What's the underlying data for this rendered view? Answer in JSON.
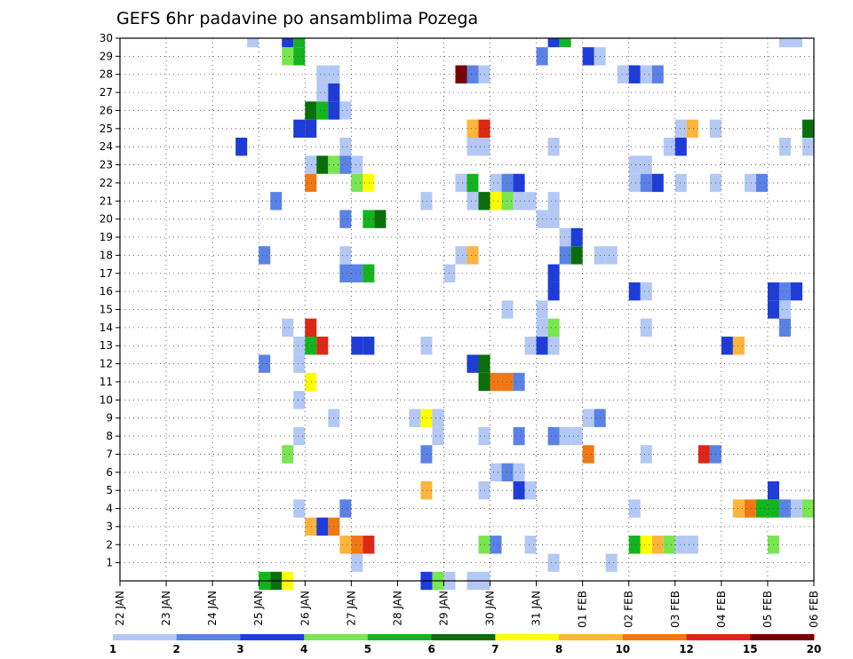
{
  "chart_data": {
    "type": "heatmap",
    "title": "GEFS 6hr padavine po ansamblima Pozega",
    "x_ticks": [
      "22 JAN",
      "23 JAN",
      "24 JAN",
      "25 JAN",
      "26 JAN",
      "27 JAN",
      "28 JAN",
      "29 JAN",
      "30 JAN",
      "31 JAN",
      "01 FEB",
      "02 FEB",
      "03 FEB",
      "04 FEB",
      "05 FEB",
      "06 FEB"
    ],
    "y_ticks": [
      "1",
      "2",
      "3",
      "4",
      "5",
      "6",
      "7",
      "8",
      "9",
      "10",
      "11",
      "12",
      "13",
      "14",
      "15",
      "16",
      "17",
      "18",
      "19",
      "20",
      "21",
      "22",
      "23",
      "24",
      "25",
      "26",
      "27",
      "28",
      "29",
      "30"
    ],
    "x_range_days": [
      0,
      15
    ],
    "y_range": [
      0,
      30
    ],
    "legend": {
      "colors": [
        "#b4c8f5",
        "#5a82e6",
        "#1e3cd7",
        "#78e650",
        "#14b41e",
        "#0a6e0a",
        "#ffff00",
        "#ffb43c",
        "#f07814",
        "#dc2814",
        "#780000"
      ],
      "labels": [
        "1",
        "2",
        "3",
        "4",
        "5",
        "6",
        "7",
        "8",
        "10",
        "12",
        "15",
        "20"
      ]
    },
    "cells": [
      [
        0,
        3.0,
        5
      ],
      [
        0,
        3.25,
        6
      ],
      [
        0,
        3.5,
        7
      ],
      [
        0,
        6.5,
        3
      ],
      [
        0,
        6.75,
        4
      ],
      [
        0,
        7.0,
        1
      ],
      [
        0,
        7.5,
        1
      ],
      [
        0,
        7.75,
        1
      ],
      [
        1,
        5.0,
        1
      ],
      [
        1,
        9.25,
        1
      ],
      [
        1,
        10.5,
        1
      ],
      [
        2,
        4.75,
        8
      ],
      [
        2,
        5.0,
        9
      ],
      [
        2,
        5.25,
        10
      ],
      [
        2,
        7.75,
        4
      ],
      [
        2,
        8.0,
        2
      ],
      [
        2,
        8.75,
        1
      ],
      [
        2,
        11.0,
        5
      ],
      [
        2,
        11.25,
        7
      ],
      [
        2,
        11.5,
        8
      ],
      [
        2,
        11.75,
        4
      ],
      [
        2,
        12.0,
        1
      ],
      [
        2,
        12.25,
        1
      ],
      [
        2,
        14.0,
        4
      ],
      [
        3,
        4.0,
        8
      ],
      [
        3,
        4.25,
        3
      ],
      [
        3,
        4.5,
        9
      ],
      [
        4,
        3.75,
        1
      ],
      [
        4,
        4.75,
        2
      ],
      [
        4,
        11.0,
        1
      ],
      [
        4,
        13.25,
        8
      ],
      [
        4,
        13.5,
        9
      ],
      [
        4,
        13.75,
        5
      ],
      [
        4,
        14.0,
        5
      ],
      [
        4,
        14.25,
        2
      ],
      [
        4,
        14.5,
        1
      ],
      [
        4,
        14.75,
        4
      ],
      [
        5,
        6.5,
        8
      ],
      [
        5,
        7.75,
        1
      ],
      [
        5,
        8.5,
        3
      ],
      [
        5,
        8.75,
        1
      ],
      [
        5,
        14.0,
        3
      ],
      [
        6,
        8.0,
        1
      ],
      [
        6,
        8.25,
        2
      ],
      [
        6,
        8.5,
        1
      ],
      [
        7,
        3.5,
        4
      ],
      [
        7,
        6.5,
        2
      ],
      [
        7,
        10.0,
        9
      ],
      [
        7,
        11.25,
        1
      ],
      [
        7,
        12.5,
        10
      ],
      [
        7,
        12.75,
        2
      ],
      [
        8,
        3.75,
        1
      ],
      [
        8,
        6.75,
        1
      ],
      [
        8,
        7.75,
        1
      ],
      [
        8,
        8.5,
        2
      ],
      [
        8,
        9.25,
        2
      ],
      [
        8,
        9.5,
        1
      ],
      [
        8,
        9.75,
        1
      ],
      [
        9,
        4.5,
        1
      ],
      [
        9,
        6.25,
        1
      ],
      [
        9,
        6.5,
        7
      ],
      [
        9,
        6.75,
        1
      ],
      [
        9,
        10.0,
        1
      ],
      [
        9,
        10.25,
        2
      ],
      [
        10,
        3.75,
        1
      ],
      [
        11,
        4.0,
        7
      ],
      [
        11,
        7.75,
        6
      ],
      [
        11,
        8.0,
        9
      ],
      [
        11,
        8.25,
        9
      ],
      [
        11,
        8.5,
        2
      ],
      [
        12,
        3.0,
        2
      ],
      [
        12,
        3.75,
        1
      ],
      [
        12,
        7.5,
        3
      ],
      [
        12,
        7.75,
        6
      ],
      [
        13,
        3.75,
        1
      ],
      [
        13,
        4.0,
        5
      ],
      [
        13,
        4.25,
        10
      ],
      [
        13,
        5.0,
        3
      ],
      [
        13,
        5.25,
        3
      ],
      [
        13,
        6.5,
        1
      ],
      [
        13,
        8.75,
        1
      ],
      [
        13,
        9.0,
        3
      ],
      [
        13,
        9.25,
        1
      ],
      [
        13,
        13.0,
        3
      ],
      [
        13,
        13.25,
        8
      ],
      [
        14,
        3.5,
        1
      ],
      [
        14,
        4.0,
        10
      ],
      [
        14,
        9.0,
        1
      ],
      [
        14,
        9.25,
        4
      ],
      [
        14,
        11.25,
        1
      ],
      [
        14,
        14.25,
        2
      ],
      [
        15,
        8.25,
        1
      ],
      [
        15,
        9.0,
        1
      ],
      [
        15,
        14.0,
        3
      ],
      [
        15,
        14.25,
        1
      ],
      [
        16,
        9.25,
        3
      ],
      [
        16,
        11.0,
        3
      ],
      [
        16,
        11.25,
        1
      ],
      [
        16,
        14.0,
        3
      ],
      [
        16,
        14.25,
        2
      ],
      [
        16,
        14.5,
        3
      ],
      [
        17,
        4.75,
        2
      ],
      [
        17,
        5.0,
        2
      ],
      [
        17,
        5.25,
        5
      ],
      [
        17,
        7.0,
        1
      ],
      [
        17,
        9.25,
        3
      ],
      [
        18,
        3.0,
        2
      ],
      [
        18,
        4.75,
        1
      ],
      [
        18,
        7.25,
        1
      ],
      [
        18,
        7.5,
        8
      ],
      [
        18,
        9.5,
        2
      ],
      [
        18,
        9.75,
        6
      ],
      [
        18,
        10.25,
        1
      ],
      [
        18,
        10.5,
        1
      ],
      [
        19,
        9.5,
        1
      ],
      [
        19,
        9.75,
        3
      ],
      [
        20,
        4.75,
        2
      ],
      [
        20,
        5.25,
        5
      ],
      [
        20,
        5.5,
        6
      ],
      [
        20,
        9.0,
        1
      ],
      [
        20,
        9.25,
        1
      ],
      [
        21,
        3.25,
        2
      ],
      [
        21,
        6.5,
        1
      ],
      [
        21,
        7.5,
        1
      ],
      [
        21,
        7.75,
        6
      ],
      [
        21,
        8.0,
        7
      ],
      [
        21,
        8.25,
        4
      ],
      [
        21,
        8.5,
        1
      ],
      [
        21,
        8.75,
        1
      ],
      [
        21,
        9.25,
        1
      ],
      [
        22,
        4.0,
        9
      ],
      [
        22,
        5.0,
        4
      ],
      [
        22,
        5.25,
        7
      ],
      [
        22,
        7.25,
        1
      ],
      [
        22,
        7.5,
        5
      ],
      [
        22,
        8.0,
        1
      ],
      [
        22,
        8.25,
        2
      ],
      [
        22,
        8.5,
        3
      ],
      [
        22,
        11.0,
        1
      ],
      [
        22,
        11.25,
        2
      ],
      [
        22,
        11.5,
        3
      ],
      [
        22,
        12.0,
        1
      ],
      [
        22,
        12.75,
        1
      ],
      [
        22,
        13.5,
        1
      ],
      [
        22,
        13.75,
        2
      ],
      [
        23,
        4.0,
        1
      ],
      [
        23,
        4.25,
        6
      ],
      [
        23,
        4.5,
        4
      ],
      [
        23,
        4.75,
        2
      ],
      [
        23,
        5.0,
        1
      ],
      [
        23,
        11.0,
        1
      ],
      [
        23,
        11.25,
        1
      ],
      [
        24,
        2.5,
        3
      ],
      [
        24,
        4.75,
        1
      ],
      [
        24,
        7.5,
        1
      ],
      [
        24,
        7.75,
        1
      ],
      [
        24,
        9.25,
        1
      ],
      [
        24,
        11.75,
        1
      ],
      [
        24,
        12.0,
        3
      ],
      [
        24,
        14.25,
        1
      ],
      [
        24,
        14.75,
        1
      ],
      [
        25,
        3.75,
        3
      ],
      [
        25,
        4.0,
        3
      ],
      [
        25,
        7.5,
        8
      ],
      [
        25,
        7.75,
        10
      ],
      [
        25,
        12.0,
        1
      ],
      [
        25,
        12.25,
        8
      ],
      [
        25,
        12.75,
        1
      ],
      [
        25,
        14.75,
        6
      ],
      [
        26,
        4.0,
        6
      ],
      [
        26,
        4.25,
        5
      ],
      [
        26,
        4.5,
        3
      ],
      [
        26,
        4.75,
        1
      ],
      [
        27,
        4.25,
        1
      ],
      [
        27,
        4.5,
        3
      ],
      [
        28,
        4.25,
        1
      ],
      [
        28,
        4.5,
        1
      ],
      [
        28,
        7.25,
        11
      ],
      [
        28,
        7.5,
        2
      ],
      [
        28,
        7.75,
        1
      ],
      [
        28,
        10.75,
        1
      ],
      [
        28,
        11.0,
        3
      ],
      [
        28,
        11.25,
        1
      ],
      [
        28,
        11.5,
        2
      ],
      [
        29,
        3.5,
        4
      ],
      [
        29,
        3.75,
        5
      ],
      [
        29,
        9.0,
        2
      ],
      [
        29,
        10.0,
        3
      ],
      [
        29,
        10.25,
        1
      ],
      [
        30,
        2.75,
        1
      ],
      [
        30,
        3.5,
        3
      ],
      [
        30,
        3.75,
        5
      ],
      [
        30,
        9.25,
        3
      ],
      [
        30,
        9.5,
        5
      ],
      [
        30,
        14.25,
        1
      ],
      [
        30,
        14.5,
        1
      ]
    ]
  }
}
